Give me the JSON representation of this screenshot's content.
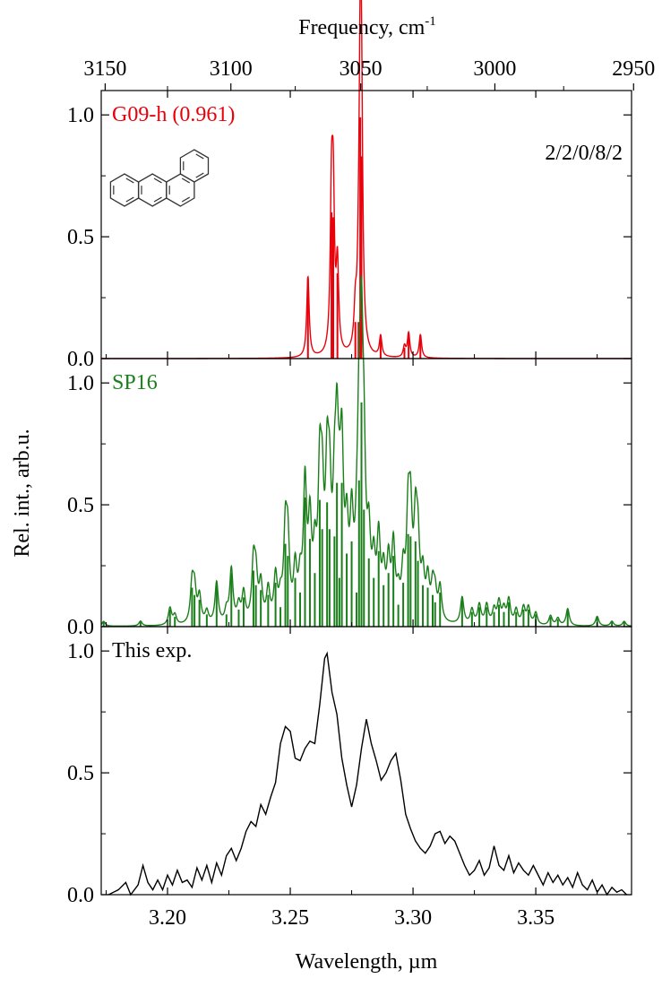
{
  "chart_data": {
    "type": "line",
    "xlabel": "Wavelength, µm",
    "x2label": "Frequency, cm",
    "x2label_sup": "-1",
    "ylabel": "Rel. int., arb.u.",
    "xlim": [
      3.173,
      3.389
    ],
    "xticks": [
      "3.20",
      "3.25",
      "3.30",
      "3.35"
    ],
    "x2ticks": [
      "3150",
      "3100",
      "3050",
      "3000",
      "2950"
    ],
    "yticks": [
      "0.0",
      "0.5",
      "1.0"
    ],
    "ylim": [
      0,
      1.1
    ],
    "panels": [
      {
        "label": "G09-h (0.961)",
        "annotation": "2/2/0/8/2",
        "color": "#e8000b",
        "fwhm": 0.0012,
        "sticks": [
          {
            "x": 3.2572,
            "h": 0.33
          },
          {
            "x": 3.2668,
            "h": 0.6
          },
          {
            "x": 3.2675,
            "h": 0.58
          },
          {
            "x": 3.2692,
            "h": 0.35
          },
          {
            "x": 3.2765,
            "h": 0.15
          },
          {
            "x": 3.2778,
            "h": 0.15
          },
          {
            "x": 3.2785,
            "h": 0.99
          },
          {
            "x": 3.279,
            "h": 0.83
          },
          {
            "x": 3.2868,
            "h": 0.085
          },
          {
            "x": 3.2965,
            "h": 0.045
          },
          {
            "x": 3.2982,
            "h": 0.1
          },
          {
            "x": 3.303,
            "h": 0.095
          }
        ]
      },
      {
        "label": "SP16",
        "color": "#1a7f1a",
        "fwhm": 0.0016,
        "sticks": [
          {
            "x": 3.174,
            "h": 0.02
          },
          {
            "x": 3.189,
            "h": 0.02
          },
          {
            "x": 3.201,
            "h": 0.07
          },
          {
            "x": 3.203,
            "h": 0.04
          },
          {
            "x": 3.21,
            "h": 0.16
          },
          {
            "x": 3.211,
            "h": 0.13
          },
          {
            "x": 3.213,
            "h": 0.11
          },
          {
            "x": 3.216,
            "h": 0.05
          },
          {
            "x": 3.22,
            "h": 0.17
          },
          {
            "x": 3.224,
            "h": 0.05
          },
          {
            "x": 3.226,
            "h": 0.22
          },
          {
            "x": 3.229,
            "h": 0.07
          },
          {
            "x": 3.231,
            "h": 0.12
          },
          {
            "x": 3.235,
            "h": 0.23
          },
          {
            "x": 3.236,
            "h": 0.17
          },
          {
            "x": 3.238,
            "h": 0.15
          },
          {
            "x": 3.241,
            "h": 0.13
          },
          {
            "x": 3.244,
            "h": 0.18
          },
          {
            "x": 3.246,
            "h": 0.08
          },
          {
            "x": 3.248,
            "h": 0.34
          },
          {
            "x": 3.249,
            "h": 0.29
          },
          {
            "x": 3.252,
            "h": 0.2
          },
          {
            "x": 3.254,
            "h": 0.14
          },
          {
            "x": 3.256,
            "h": 0.53
          },
          {
            "x": 3.258,
            "h": 0.36
          },
          {
            "x": 3.26,
            "h": 0.22
          },
          {
            "x": 3.262,
            "h": 0.52
          },
          {
            "x": 3.263,
            "h": 0.4
          },
          {
            "x": 3.265,
            "h": 0.51
          },
          {
            "x": 3.266,
            "h": 0.4
          },
          {
            "x": 3.268,
            "h": 0.37
          },
          {
            "x": 3.269,
            "h": 0.59
          },
          {
            "x": 3.27,
            "h": 0.2
          },
          {
            "x": 3.271,
            "h": 0.59
          },
          {
            "x": 3.273,
            "h": 0.3
          },
          {
            "x": 3.275,
            "h": 0.35
          },
          {
            "x": 3.277,
            "h": 0.14
          },
          {
            "x": 3.278,
            "h": 0.6
          },
          {
            "x": 3.279,
            "h": 0.92
          },
          {
            "x": 3.28,
            "h": 0.48
          },
          {
            "x": 3.282,
            "h": 0.28
          },
          {
            "x": 3.284,
            "h": 0.2
          },
          {
            "x": 3.286,
            "h": 0.31
          },
          {
            "x": 3.288,
            "h": 0.17
          },
          {
            "x": 3.29,
            "h": 0.22
          },
          {
            "x": 3.292,
            "h": 0.29
          },
          {
            "x": 3.294,
            "h": 0.09
          },
          {
            "x": 3.296,
            "h": 0.18
          },
          {
            "x": 3.298,
            "h": 0.38
          },
          {
            "x": 3.299,
            "h": 0.37
          },
          {
            "x": 3.301,
            "h": 0.35
          },
          {
            "x": 3.302,
            "h": 0.27
          },
          {
            "x": 3.304,
            "h": 0.17
          },
          {
            "x": 3.306,
            "h": 0.16
          },
          {
            "x": 3.308,
            "h": 0.13
          },
          {
            "x": 3.309,
            "h": 0.1
          },
          {
            "x": 3.311,
            "h": 0.14
          },
          {
            "x": 3.32,
            "h": 0.11
          },
          {
            "x": 3.324,
            "h": 0.06
          },
          {
            "x": 3.327,
            "h": 0.08
          },
          {
            "x": 3.33,
            "h": 0.08
          },
          {
            "x": 3.333,
            "h": 0.06
          },
          {
            "x": 3.335,
            "h": 0.09
          },
          {
            "x": 3.337,
            "h": 0.06
          },
          {
            "x": 3.339,
            "h": 0.1
          },
          {
            "x": 3.342,
            "h": 0.06
          },
          {
            "x": 3.345,
            "h": 0.07
          },
          {
            "x": 3.347,
            "h": 0.07
          },
          {
            "x": 3.35,
            "h": 0.05
          },
          {
            "x": 3.356,
            "h": 0.04
          },
          {
            "x": 3.359,
            "h": 0.03
          },
          {
            "x": 3.363,
            "h": 0.07
          },
          {
            "x": 3.375,
            "h": 0.04
          },
          {
            "x": 3.381,
            "h": 0.02
          },
          {
            "x": 3.386,
            "h": 0.02
          }
        ]
      },
      {
        "label": "This exp.",
        "color": "#000000",
        "trace": [
          [
            3.176,
            0.0
          ],
          [
            3.18,
            0.02
          ],
          [
            3.183,
            0.05
          ],
          [
            3.185,
            0.0
          ],
          [
            3.188,
            0.04
          ],
          [
            3.19,
            0.12
          ],
          [
            3.192,
            0.05
          ],
          [
            3.194,
            0.02
          ],
          [
            3.196,
            0.06
          ],
          [
            3.198,
            0.02
          ],
          [
            3.2,
            0.08
          ],
          [
            3.202,
            0.04
          ],
          [
            3.204,
            0.1
          ],
          [
            3.206,
            0.05
          ],
          [
            3.208,
            0.06
          ],
          [
            3.21,
            0.03
          ],
          [
            3.212,
            0.11
          ],
          [
            3.214,
            0.06
          ],
          [
            3.216,
            0.12
          ],
          [
            3.218,
            0.05
          ],
          [
            3.22,
            0.13
          ],
          [
            3.222,
            0.08
          ],
          [
            3.224,
            0.16
          ],
          [
            3.226,
            0.19
          ],
          [
            3.228,
            0.14
          ],
          [
            3.23,
            0.19
          ],
          [
            3.232,
            0.26
          ],
          [
            3.234,
            0.3
          ],
          [
            3.236,
            0.28
          ],
          [
            3.238,
            0.37
          ],
          [
            3.24,
            0.33
          ],
          [
            3.242,
            0.4
          ],
          [
            3.244,
            0.46
          ],
          [
            3.246,
            0.62
          ],
          [
            3.248,
            0.69
          ],
          [
            3.25,
            0.67
          ],
          [
            3.252,
            0.56
          ],
          [
            3.254,
            0.55
          ],
          [
            3.256,
            0.6
          ],
          [
            3.258,
            0.63
          ],
          [
            3.26,
            0.62
          ],
          [
            3.262,
            0.78
          ],
          [
            3.264,
            0.97
          ],
          [
            3.265,
            0.99
          ],
          [
            3.267,
            0.83
          ],
          [
            3.269,
            0.74
          ],
          [
            3.271,
            0.56
          ],
          [
            3.273,
            0.45
          ],
          [
            3.275,
            0.36
          ],
          [
            3.277,
            0.45
          ],
          [
            3.279,
            0.6
          ],
          [
            3.281,
            0.72
          ],
          [
            3.283,
            0.62
          ],
          [
            3.285,
            0.55
          ],
          [
            3.287,
            0.47
          ],
          [
            3.289,
            0.5
          ],
          [
            3.291,
            0.55
          ],
          [
            3.293,
            0.58
          ],
          [
            3.295,
            0.47
          ],
          [
            3.297,
            0.33
          ],
          [
            3.299,
            0.27
          ],
          [
            3.301,
            0.22
          ],
          [
            3.303,
            0.19
          ],
          [
            3.305,
            0.17
          ],
          [
            3.307,
            0.2
          ],
          [
            3.309,
            0.25
          ],
          [
            3.311,
            0.26
          ],
          [
            3.313,
            0.21
          ],
          [
            3.315,
            0.24
          ],
          [
            3.317,
            0.22
          ],
          [
            3.319,
            0.17
          ],
          [
            3.321,
            0.12
          ],
          [
            3.323,
            0.08
          ],
          [
            3.325,
            0.1
          ],
          [
            3.327,
            0.14
          ],
          [
            3.329,
            0.08
          ],
          [
            3.331,
            0.11
          ],
          [
            3.333,
            0.2
          ],
          [
            3.335,
            0.12
          ],
          [
            3.337,
            0.1
          ],
          [
            3.339,
            0.16
          ],
          [
            3.341,
            0.09
          ],
          [
            3.343,
            0.13
          ],
          [
            3.345,
            0.1
          ],
          [
            3.347,
            0.08
          ],
          [
            3.349,
            0.12
          ],
          [
            3.351,
            0.08
          ],
          [
            3.353,
            0.04
          ],
          [
            3.355,
            0.09
          ],
          [
            3.357,
            0.05
          ],
          [
            3.359,
            0.08
          ],
          [
            3.361,
            0.04
          ],
          [
            3.363,
            0.07
          ],
          [
            3.365,
            0.03
          ],
          [
            3.367,
            0.09
          ],
          [
            3.369,
            0.04
          ],
          [
            3.371,
            0.02
          ],
          [
            3.373,
            0.06
          ],
          [
            3.375,
            0.01
          ],
          [
            3.377,
            0.04
          ],
          [
            3.379,
            0.0
          ],
          [
            3.381,
            0.03
          ],
          [
            3.383,
            0.01
          ],
          [
            3.385,
            0.02
          ],
          [
            3.387,
            0.0
          ]
        ]
      }
    ]
  }
}
